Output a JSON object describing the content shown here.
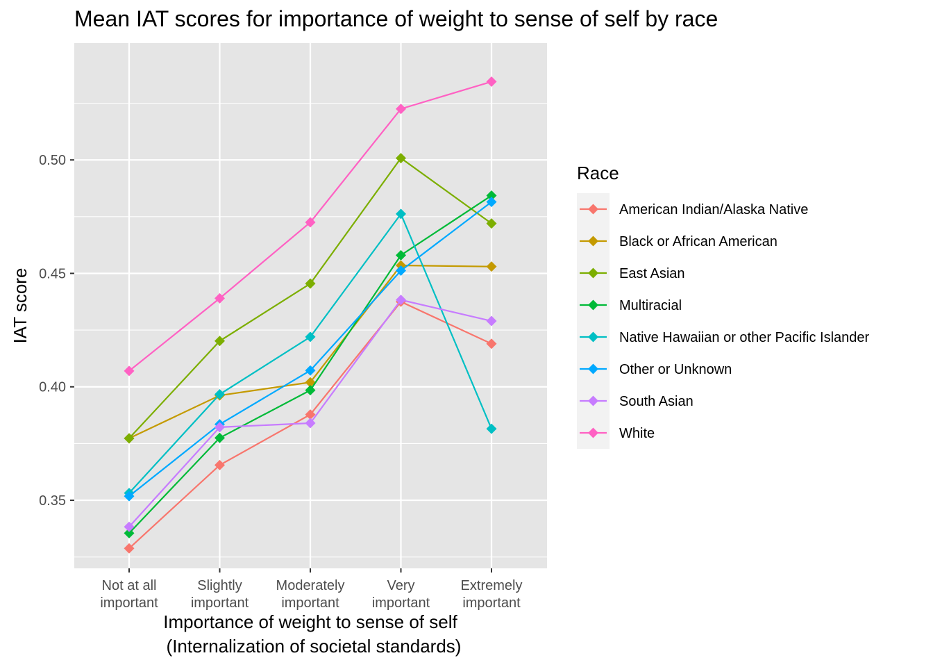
{
  "chart_data": {
    "type": "line",
    "title": "Mean IAT scores for importance of weight to sense of self by race",
    "xlabel": [
      "Importance of weight to sense of self",
      "(Internalization of societal standards)"
    ],
    "ylabel": "IAT score",
    "categories": [
      [
        "Not at all",
        "important"
      ],
      [
        "Slightly",
        "important"
      ],
      [
        "Moderately",
        "important"
      ],
      [
        "Very",
        "important"
      ],
      [
        "Extremely",
        "important"
      ]
    ],
    "ylim": [
      0.32,
      0.5515
    ],
    "yticks": [
      0.35,
      0.4,
      0.45,
      0.5
    ],
    "ytick_labels": [
      "0.35",
      "0.40",
      "0.45",
      "0.50"
    ],
    "grid": true,
    "background": "#e5e5e5",
    "legend": {
      "title": "Race",
      "position": "right"
    },
    "series": [
      {
        "name": "American Indian/Alaska Native",
        "color": "#F8766D",
        "values": [
          0.3288,
          0.3655,
          0.3878,
          0.4375,
          0.419
        ]
      },
      {
        "name": "Black or African American",
        "color": "#C49A00",
        "values": [
          0.3773,
          0.3962,
          0.402,
          0.4535,
          0.453
        ]
      },
      {
        "name": "East Asian",
        "color": "#7CAE00",
        "values": [
          0.3773,
          0.4202,
          0.4455,
          0.5008,
          0.472
        ]
      },
      {
        "name": "Multiracial",
        "color": "#00BA38",
        "values": [
          0.3355,
          0.3775,
          0.3985,
          0.458,
          0.4843
        ]
      },
      {
        "name": "Native Hawaiian or other Pacific Islander",
        "color": "#00BFC4",
        "values": [
          0.3532,
          0.3967,
          0.422,
          0.4762,
          0.3815
        ]
      },
      {
        "name": "Other or Unknown",
        "color": "#00A9FF",
        "values": [
          0.3518,
          0.3835,
          0.4072,
          0.4512,
          0.4815
        ]
      },
      {
        "name": "South Asian",
        "color": "#C77CFF",
        "values": [
          0.3383,
          0.3822,
          0.384,
          0.4383,
          0.429
        ]
      },
      {
        "name": "White",
        "color": "#FF61C3",
        "values": [
          0.407,
          0.439,
          0.4725,
          0.5225,
          0.5345
        ]
      }
    ]
  }
}
